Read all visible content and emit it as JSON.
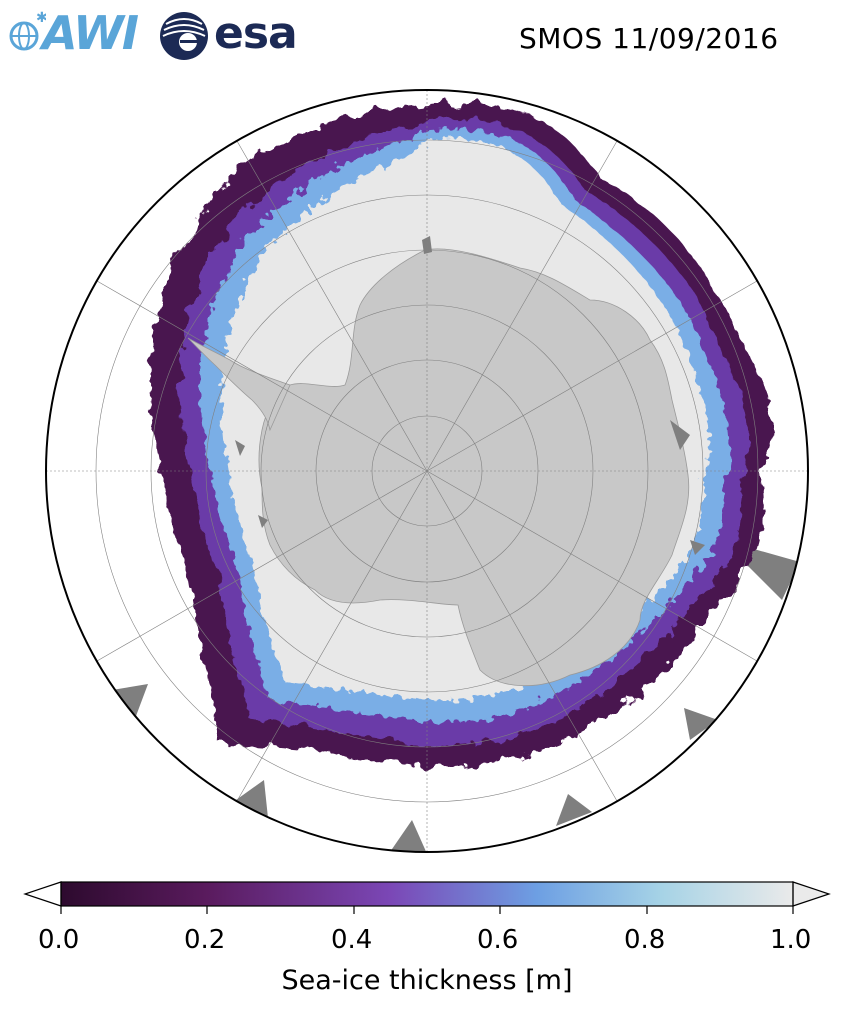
{
  "header": {
    "title": "SMOS 11/09/2016",
    "logos": [
      {
        "name": "AWI",
        "text": "AWI"
      },
      {
        "name": "esa",
        "text": "esa"
      }
    ]
  },
  "map": {
    "projection": "south-polar-stereographic",
    "colors": {
      "land": "#c8c8c8",
      "no_data": "#7f7f7f",
      "ice_thick": "#e8e8e8",
      "ocean": "#ffffff",
      "grid": "#808080"
    }
  },
  "colorbar": {
    "label": "Sea-ice thickness [m]",
    "ticks": [
      "0.0",
      "0.2",
      "0.4",
      "0.6",
      "0.8",
      "1.0"
    ],
    "range": [
      0.0,
      1.0
    ],
    "colormap": [
      "#2d0a2e",
      "#5a1b5e",
      "#7b47b6",
      "#6d9fe3",
      "#a6d3e6",
      "#eaeaea"
    ],
    "extend": "both"
  }
}
